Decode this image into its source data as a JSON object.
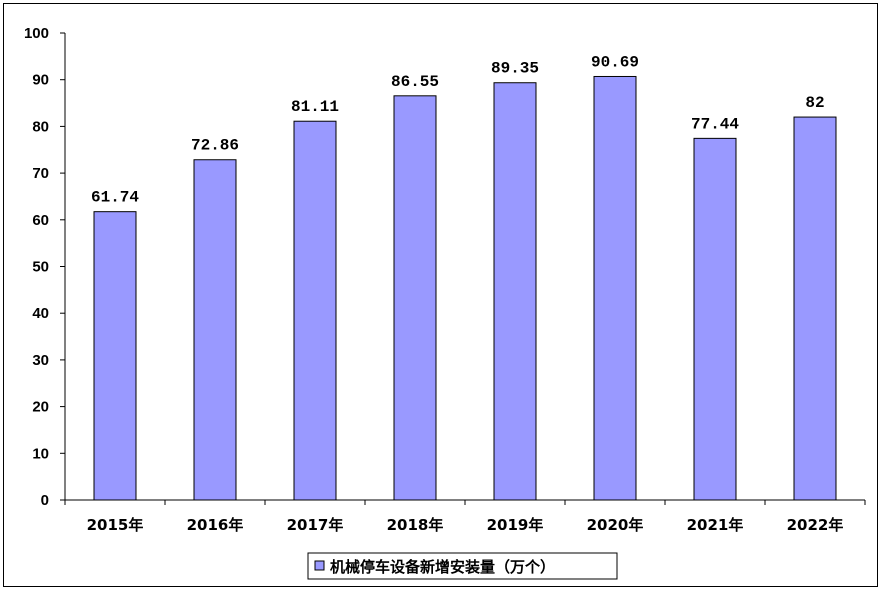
{
  "chart_data": {
    "type": "bar",
    "categories": [
      "2015年",
      "2016年",
      "2017年",
      "2018年",
      "2019年",
      "2020年",
      "2021年",
      "2022年"
    ],
    "series": [
      {
        "name": "机械停车设备新增安装量（万个）",
        "values": [
          61.74,
          72.86,
          81.11,
          86.55,
          89.35,
          90.69,
          77.44,
          82
        ],
        "labels": [
          "61.74",
          "72.86",
          "81.11",
          "86.55",
          "89.35",
          "90.69",
          "77.44",
          "82"
        ],
        "color": "#9999ff"
      }
    ],
    "ylim": [
      0,
      100
    ],
    "yticks": [
      0,
      10,
      20,
      30,
      40,
      50,
      60,
      70,
      80,
      90,
      100
    ],
    "grid": false,
    "legend": "bottom-center"
  }
}
